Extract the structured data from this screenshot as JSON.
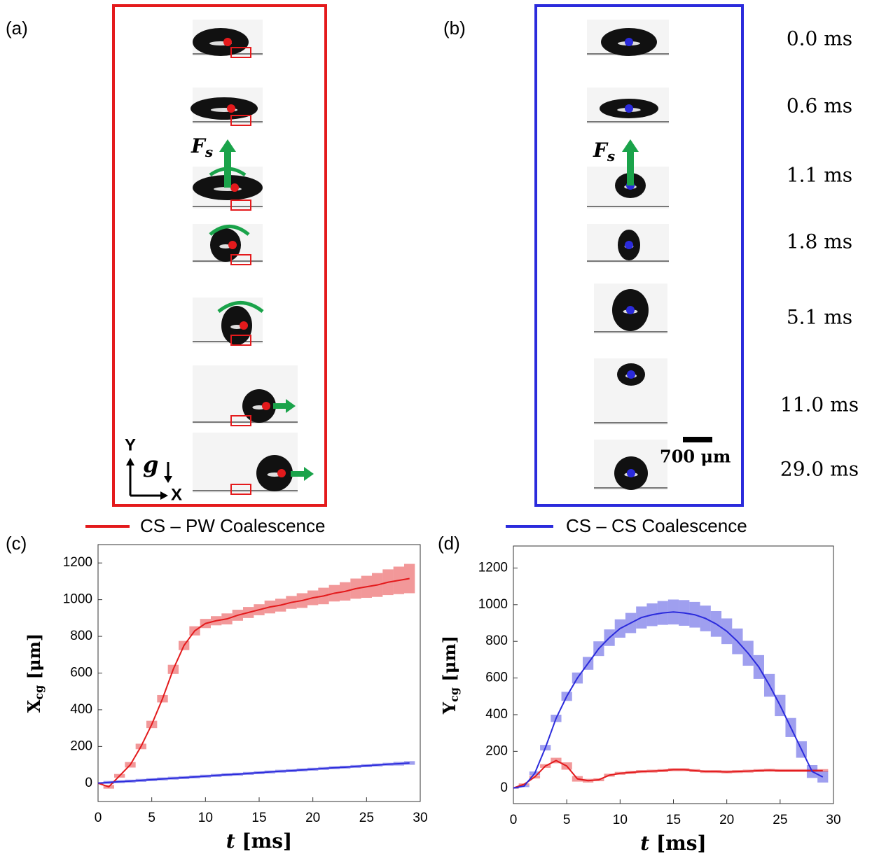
{
  "panel_labels": [
    "(a)",
    "(b)",
    "(c)",
    "(d)"
  ],
  "times": [
    "0.0 ms",
    "0.6 ms",
    "1.1 ms",
    "1.8 ms",
    "5.1 ms",
    "11.0 ms",
    "29.0 ms"
  ],
  "force_label": [
    "F",
    "s"
  ],
  "axes_icon": {
    "y": "Y",
    "x": "X",
    "g": "g"
  },
  "scale_bar": "700 μm",
  "chart_data": [
    {
      "type": "line",
      "xlabel": [
        "t ",
        "[ms]"
      ],
      "ylabel": [
        "X",
        "cg",
        " [μm]"
      ],
      "x": [
        0,
        1,
        2,
        3,
        4,
        5,
        6,
        7,
        8,
        9,
        10,
        11,
        12,
        13,
        14,
        15,
        16,
        17,
        18,
        19,
        20,
        21,
        22,
        23,
        24,
        25,
        26,
        27,
        28,
        29
      ],
      "series": [
        {
          "name": "CS – PW Coalescence",
          "color": "#e31a1c",
          "values": [
            0,
            -20,
            40,
            100,
            200,
            320,
            460,
            620,
            750,
            830,
            870,
            885,
            895,
            915,
            930,
            945,
            960,
            970,
            985,
            995,
            1010,
            1020,
            1035,
            1045,
            1060,
            1070,
            1080,
            1095,
            1105,
            1115
          ],
          "error": [
            5,
            10,
            10,
            15,
            15,
            20,
            20,
            25,
            25,
            25,
            25,
            25,
            30,
            30,
            30,
            30,
            35,
            35,
            35,
            40,
            40,
            45,
            45,
            50,
            55,
            60,
            65,
            70,
            75,
            80
          ]
        },
        {
          "name": "CS – CS Coalescence",
          "color": "#2b2bdc",
          "values": [
            0,
            4,
            8,
            11,
            15,
            19,
            23,
            27,
            30,
            34,
            38,
            42,
            46,
            49,
            53,
            57,
            61,
            65,
            68,
            72,
            76,
            80,
            84,
            87,
            91,
            95,
            99,
            103,
            106,
            110
          ],
          "error": [
            5,
            8,
            8,
            8,
            8,
            8,
            8,
            8,
            8,
            8,
            8,
            8,
            8,
            8,
            8,
            8,
            8,
            8,
            8,
            8,
            8,
            8,
            8,
            8,
            8,
            8,
            8,
            8,
            10,
            10
          ]
        }
      ],
      "xlim": [
        0,
        30
      ],
      "xticks": [
        0,
        5,
        10,
        15,
        20,
        25,
        30
      ],
      "ylim": [
        -100,
        1300
      ],
      "yticks": [
        0,
        200,
        400,
        600,
        800,
        1000,
        1200
      ]
    },
    {
      "type": "line",
      "xlabel": [
        "t ",
        "[ms]"
      ],
      "ylabel": [
        "Y",
        "cg",
        " [μm]"
      ],
      "x": [
        0,
        1,
        2,
        3,
        4,
        5,
        6,
        7,
        8,
        9,
        10,
        11,
        12,
        13,
        14,
        15,
        16,
        17,
        18,
        19,
        20,
        21,
        22,
        23,
        24,
        25,
        26,
        27,
        28,
        29
      ],
      "series": [
        {
          "color": "#e31a1c",
          "values": [
            0,
            20,
            60,
            120,
            150,
            120,
            50,
            40,
            45,
            70,
            80,
            85,
            90,
            92,
            95,
            100,
            100,
            95,
            90,
            90,
            88,
            90,
            92,
            95,
            97,
            95,
            95,
            95,
            95,
            95
          ],
          "error": [
            3,
            5,
            8,
            10,
            15,
            20,
            15,
            10,
            8,
            8,
            8,
            8,
            8,
            8,
            8,
            8,
            8,
            8,
            8,
            8,
            8,
            8,
            8,
            8,
            8,
            8,
            8,
            8,
            8,
            8
          ]
        },
        {
          "color": "#2b2bdc",
          "values": [
            0,
            10,
            80,
            220,
            380,
            500,
            600,
            680,
            760,
            820,
            870,
            900,
            930,
            945,
            955,
            960,
            955,
            945,
            925,
            895,
            855,
            800,
            735,
            660,
            560,
            450,
            330,
            210,
            90,
            60
          ],
          "error": [
            3,
            5,
            10,
            15,
            20,
            25,
            30,
            35,
            40,
            45,
            50,
            55,
            60,
            62,
            65,
            68,
            70,
            70,
            70,
            70,
            70,
            70,
            68,
            65,
            62,
            58,
            52,
            45,
            35,
            30
          ]
        }
      ],
      "xlim": [
        0,
        30
      ],
      "xticks": [
        0,
        5,
        10,
        15,
        20,
        25,
        30
      ],
      "ylim": [
        -85,
        1320
      ],
      "yticks": [
        0,
        200,
        400,
        600,
        800,
        1000,
        1200
      ]
    }
  ]
}
